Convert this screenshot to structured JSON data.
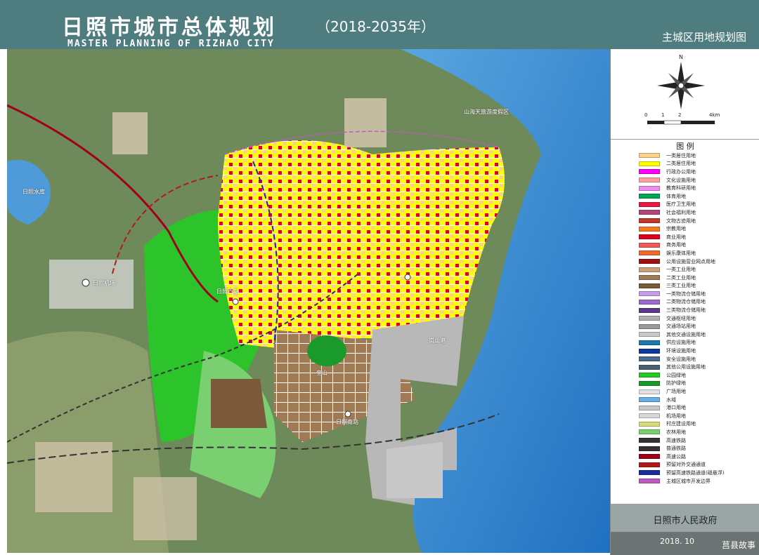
{
  "header": {
    "title_cn": "日照市城市总体规划",
    "title_years": "（2018-2035年）",
    "title_en": "MASTER PLANNING OF RIZHAO CITY",
    "subtitle": "主城区用地规划图"
  },
  "scale": {
    "ticks": [
      "0",
      "1",
      "2",
      "4km"
    ]
  },
  "legend": {
    "title": "图 例",
    "items": [
      {
        "label": "一类居住用地",
        "color": "#fbd48a"
      },
      {
        "label": "二类居住用地",
        "color": "#ffff00"
      },
      {
        "label": "行政办公用地",
        "color": "#ff00ff"
      },
      {
        "label": "文化设施用地",
        "color": "#ff9f9f"
      },
      {
        "label": "教育科研用地",
        "color": "#f08cf0"
      },
      {
        "label": "体育用地",
        "color": "#00a651"
      },
      {
        "label": "医疗卫生用地",
        "color": "#e8173f"
      },
      {
        "label": "社会福利用地",
        "color": "#b3477a"
      },
      {
        "label": "文物古迹用地",
        "color": "#c0392b"
      },
      {
        "label": "宗教用地",
        "color": "#f47a20"
      },
      {
        "label": "商业用地",
        "color": "#e3001b"
      },
      {
        "label": "商务用地",
        "color": "#f25a5a"
      },
      {
        "label": "娱乐康体用地",
        "color": "#f06a30"
      },
      {
        "label": "公用设施营业网点用地",
        "color": "#a0100f"
      },
      {
        "label": "一类工业用地",
        "color": "#c8a07a"
      },
      {
        "label": "二类工业用地",
        "color": "#a07a55"
      },
      {
        "label": "三类工业用地",
        "color": "#7a5a3a"
      },
      {
        "label": "一类物流仓储用地",
        "color": "#c89ee8"
      },
      {
        "label": "二类物流仓储用地",
        "color": "#9a6ad0"
      },
      {
        "label": "三类物流仓储用地",
        "color": "#5a3a86"
      },
      {
        "label": "交通枢纽用地",
        "color": "#b0b0b0"
      },
      {
        "label": "交通场站用地",
        "color": "#9a9a9a"
      },
      {
        "label": "其他交通设施用地",
        "color": "#c8c8c8"
      },
      {
        "label": "供应设施用地",
        "color": "#1a7ab0"
      },
      {
        "label": "环境设施用地",
        "color": "#0a3aa0"
      },
      {
        "label": "安全设施用地",
        "color": "#4a6a8a"
      },
      {
        "label": "其他公用设施用地",
        "color": "#4a6070"
      },
      {
        "label": "公园绿地",
        "color": "#22cc22"
      },
      {
        "label": "防护绿地",
        "color": "#1a9a2a"
      },
      {
        "label": "广场用地",
        "color": "#e0e0e0"
      },
      {
        "label": "水域",
        "color": "#6aaee8"
      },
      {
        "label": "港口用地",
        "color": "#c8c8c8"
      },
      {
        "label": "机场用地",
        "color": "#d8d8d8"
      },
      {
        "label": "村庄建设用地",
        "color": "#d6dc7a"
      },
      {
        "label": "农林用地",
        "color": "#7ad070"
      },
      {
        "label": "高速铁路",
        "color": "#333333"
      },
      {
        "label": "普通铁路",
        "color": "#333333"
      },
      {
        "label": "高速公路",
        "color": "#a0001a"
      },
      {
        "label": "预留对外交通通道",
        "color": "#b01a1a"
      },
      {
        "label": "预留高速铁路通道(磁悬浮)",
        "color": "#1a2aa0"
      },
      {
        "label": "主城区城市开发边界",
        "color": "#c05ac0"
      }
    ]
  },
  "map_labels": {
    "reservoir": "日照水库",
    "airport": "日照机场",
    "west_station": "日照西站",
    "south_station": "日照南站",
    "port": "岚山港",
    "mountain": "奎山",
    "tourist": "山海天旅游度假区"
  },
  "footer": {
    "government": "日照市人民政府",
    "date": "2018. 10",
    "watermark": "莒县故事"
  },
  "colors": {
    "header_bg": "#4f7d7f",
    "sea": "#2f86d0",
    "mountain": "#6f8a5a",
    "footer_band": "#9aa6a6"
  }
}
